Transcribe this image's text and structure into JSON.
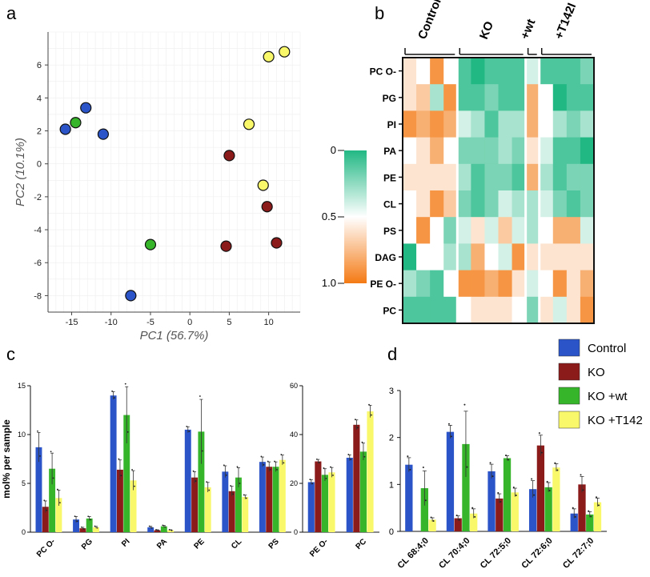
{
  "panels": {
    "a": "a",
    "b": "b",
    "c": "c",
    "d": "d"
  },
  "colors": {
    "control": "#2a54c8",
    "ko": "#8b1a1a",
    "kowt": "#36b42a",
    "kot142": "#f8f86a",
    "teal": "#22b884",
    "orange": "#f47a14"
  },
  "chart_data": [
    {
      "id": "a",
      "type": "scatter",
      "xlabel": "PC1 (56.7%)",
      "ylabel": "PC2 (10.1%)",
      "xlim": [
        -18,
        14
      ],
      "ylim": [
        -9,
        8
      ],
      "xticks": [
        -15,
        -10,
        -5,
        0,
        5,
        10
      ],
      "yticks": [
        -8,
        -6,
        -4,
        -2,
        0,
        2,
        4,
        6
      ],
      "grid": true,
      "series": [
        {
          "name": "Control",
          "color_key": "control",
          "points": [
            [
              -15.8,
              2.1
            ],
            [
              -13.2,
              3.4
            ],
            [
              -11.0,
              1.8
            ],
            [
              -7.5,
              -8.0
            ]
          ]
        },
        {
          "name": "KO",
          "color_key": "ko",
          "points": [
            [
              5.0,
              0.5
            ],
            [
              4.6,
              -5.0
            ],
            [
              9.8,
              -2.6
            ],
            [
              11.0,
              -4.8
            ]
          ]
        },
        {
          "name": "KO +wt",
          "color_key": "kowt",
          "points": [
            [
              -14.5,
              2.5
            ],
            [
              -5.0,
              -4.9
            ]
          ]
        },
        {
          "name": "KO +T142",
          "color_key": "kot142",
          "points": [
            [
              7.5,
              2.4
            ],
            [
              9.3,
              -1.3
            ],
            [
              10.0,
              6.5
            ],
            [
              12.0,
              6.8
            ]
          ]
        }
      ]
    },
    {
      "id": "b",
      "type": "heatmap",
      "column_groups": [
        "Control",
        "KO",
        "+wt",
        "+T142I"
      ],
      "group_sizes": [
        4,
        5,
        1,
        4
      ],
      "rows": [
        "PC O-",
        "PG",
        "PI",
        "PA",
        "PE",
        "CL",
        "PS",
        "DAG",
        "PE O-",
        "PC"
      ],
      "colorbar": {
        "ticks": [
          "0",
          "0.5",
          "1.0"
        ],
        "min": 0,
        "max": 1
      },
      "values": [
        [
          0.6,
          0.5,
          0.9,
          0.5,
          0.1,
          0.0,
          0.1,
          0.1,
          0.1,
          0.4,
          0.1,
          0.1,
          0.1,
          0.2
        ],
        [
          0.6,
          0.7,
          0.3,
          0.9,
          0.1,
          0.1,
          0.2,
          0.1,
          0.1,
          0.8,
          0.5,
          0.0,
          0.1,
          0.1
        ],
        [
          0.9,
          0.8,
          0.9,
          0.8,
          0.4,
          0.3,
          0.1,
          0.3,
          0.3,
          0.8,
          0.5,
          0.3,
          0.2,
          0.3
        ],
        [
          0.5,
          0.6,
          0.8,
          0.5,
          0.2,
          0.2,
          0.2,
          0.3,
          0.2,
          0.6,
          0.4,
          0.1,
          0.1,
          0.0
        ],
        [
          0.6,
          0.6,
          0.6,
          0.6,
          0.3,
          0.1,
          0.2,
          0.2,
          0.1,
          0.8,
          0.3,
          0.1,
          0.2,
          0.2
        ],
        [
          0.5,
          0.6,
          0.9,
          0.7,
          0.2,
          0.1,
          0.2,
          0.4,
          0.3,
          0.3,
          0.4,
          0.2,
          0.1,
          0.2
        ],
        [
          0.5,
          0.9,
          0.5,
          0.2,
          0.4,
          0.6,
          0.4,
          0.7,
          0.4,
          0.3,
          0.5,
          0.8,
          0.8,
          0.4
        ],
        [
          0.0,
          0.5,
          0.5,
          0.3,
          0.3,
          0.8,
          0.5,
          0.4,
          0.9,
          0.6,
          0.6,
          0.6,
          0.6,
          0.6
        ],
        [
          0.3,
          0.2,
          0.1,
          0.5,
          0.9,
          0.9,
          0.8,
          0.9,
          0.6,
          0.4,
          0.5,
          0.9,
          0.6,
          0.8
        ],
        [
          0.1,
          0.1,
          0.1,
          0.1,
          0.5,
          0.6,
          0.6,
          0.6,
          0.5,
          0.2,
          0.6,
          0.4,
          0.6,
          0.9
        ]
      ]
    },
    {
      "id": "c",
      "type": "bar",
      "ylabel": "mol% per sample",
      "subplots": [
        {
          "categories": [
            "PC O-",
            "PG",
            "PI",
            "PA",
            "PE",
            "CL",
            "PS"
          ],
          "ylim": [
            0,
            15
          ],
          "yticks": [
            0,
            5,
            10,
            15
          ],
          "series": [
            {
              "name": "Control",
              "values": [
                8.7,
                1.3,
                14.0,
                0.5,
                10.5,
                6.2,
                7.2
              ],
              "err": [
                1.5,
                0.3,
                0.4,
                0.1,
                0.3,
                0.6,
                0.5
              ]
            },
            {
              "name": "KO",
              "values": [
                2.6,
                0.4,
                6.4,
                0.2,
                5.6,
                4.2,
                6.7
              ],
              "err": [
                0.6,
                0.1,
                1.0,
                0.05,
                0.6,
                0.5,
                0.5
              ]
            },
            {
              "name": "KO +wt",
              "values": [
                6.5,
                1.4,
                12.0,
                0.6,
                10.3,
                5.6,
                6.7
              ],
              "err": [
                1.6,
                0.2,
                2.9,
                0.1,
                3.3,
                1.0,
                0.5
              ]
            },
            {
              "name": "KO +T142",
              "values": [
                3.5,
                0.5,
                5.3,
                0.2,
                4.6,
                3.6,
                7.4
              ],
              "err": [
                0.8,
                0.1,
                1.0,
                0.05,
                0.5,
                0.2,
                0.5
              ]
            }
          ]
        },
        {
          "categories": [
            "PE O-",
            "PC"
          ],
          "ylim": [
            0,
            60
          ],
          "yticks": [
            0,
            20,
            40,
            60
          ],
          "series": [
            {
              "name": "Control",
              "values": [
                20.5,
                30.5
              ],
              "err": [
                1.0,
                1.2
              ]
            },
            {
              "name": "KO",
              "values": [
                29.0,
                44.0
              ],
              "err": [
                0.8,
                2.0
              ]
            },
            {
              "name": "KO +wt",
              "values": [
                23.5,
                33.0
              ],
              "err": [
                2.5,
                3.5
              ]
            },
            {
              "name": "KO +T142",
              "values": [
                24.5,
                49.5
              ],
              "err": [
                2.0,
                2.5
              ]
            }
          ]
        }
      ]
    },
    {
      "id": "d",
      "type": "bar",
      "categories": [
        "CL 68:4;0",
        "CL 70:4;0",
        "CL 72:5;0",
        "CL 72:6;0",
        "CL 72:7;0"
      ],
      "ylim": [
        0,
        3
      ],
      "yticks": [
        0,
        1,
        2,
        3
      ],
      "legend": [
        "Control",
        "KO",
        "KO +wt",
        "KO +T142"
      ],
      "legend_position": "top-right",
      "series": [
        {
          "name": "Control",
          "values": [
            1.42,
            2.12,
            1.28,
            0.9,
            0.38
          ],
          "err": [
            0.15,
            0.14,
            0.15,
            0.18,
            0.1
          ]
        },
        {
          "name": "KO",
          "values": [
            0.0,
            0.28,
            0.7,
            1.83,
            1.0
          ],
          "err": [
            0.0,
            0.05,
            0.1,
            0.22,
            0.17
          ]
        },
        {
          "name": "KO +wt",
          "values": [
            0.92,
            1.86,
            1.56,
            0.94,
            0.36
          ],
          "err": [
            0.37,
            0.7,
            0.05,
            0.1,
            0.06
          ]
        },
        {
          "name": "KO +T142",
          "values": [
            0.25,
            0.38,
            0.83,
            1.36,
            0.62
          ],
          "err": [
            0.04,
            0.1,
            0.09,
            0.08,
            0.09
          ]
        }
      ]
    }
  ]
}
